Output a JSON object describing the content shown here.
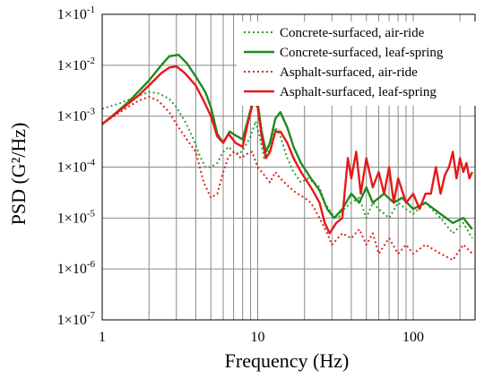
{
  "chart_data": {
    "type": "line",
    "title": "",
    "xlabel": "Frequency (Hz)",
    "ylabel": "PSD (G²/Hz)",
    "x_scale": "log",
    "y_scale": "log",
    "xlim": [
      1,
      250
    ],
    "ylim": [
      1e-07,
      0.1
    ],
    "grid": true,
    "legend_position": "top-right",
    "x_tick_labels": [
      {
        "value": 1,
        "label": "1"
      },
      {
        "value": 10,
        "label": "10"
      },
      {
        "value": 100,
        "label": "100"
      }
    ],
    "y_tick_labels": [
      {
        "value": 0.1,
        "mant": "1×10",
        "exp": "-1"
      },
      {
        "value": 0.01,
        "mant": "1×10",
        "exp": "-2"
      },
      {
        "value": 0.001,
        "mant": "1×10",
        "exp": "-3"
      },
      {
        "value": 0.0001,
        "mant": "1×10",
        "exp": "-4"
      },
      {
        "value": 1e-05,
        "mant": "1×10",
        "exp": "-5"
      },
      {
        "value": 1e-06,
        "mant": "1×10",
        "exp": "-6"
      },
      {
        "value": 1e-07,
        "mant": "1×10",
        "exp": "-7"
      }
    ],
    "series": [
      {
        "name": "Concrete-surfaced, air-ride",
        "color": "#2e9e2e",
        "dash": "dotted",
        "points": [
          [
            1,
            0.0014
          ],
          [
            1.3,
            0.0018
          ],
          [
            1.7,
            0.0025
          ],
          [
            2.0,
            0.003
          ],
          [
            2.3,
            0.0028
          ],
          [
            2.7,
            0.0022
          ],
          [
            3.0,
            0.0015
          ],
          [
            3.4,
            0.0008
          ],
          [
            3.8,
            0.0004
          ],
          [
            4.2,
            0.00018
          ],
          [
            4.6,
            0.0001
          ],
          [
            5.0,
            0.0001
          ],
          [
            5.5,
            0.00012
          ],
          [
            6.0,
            0.0002
          ],
          [
            6.5,
            0.00025
          ],
          [
            7.0,
            0.0002
          ],
          [
            7.6,
            0.00018
          ],
          [
            8.3,
            0.00025
          ],
          [
            9.0,
            0.0004
          ],
          [
            9.7,
            0.0008
          ],
          [
            10.3,
            0.0004
          ],
          [
            11,
            0.00015
          ],
          [
            12,
            0.00022
          ],
          [
            13,
            0.0006
          ],
          [
            14,
            0.0004
          ],
          [
            15.5,
            0.00015
          ],
          [
            17,
            8e-05
          ],
          [
            19,
            5e-05
          ],
          [
            21,
            6e-05
          ],
          [
            23,
            5e-05
          ],
          [
            25,
            4e-05
          ],
          [
            27,
            2e-05
          ],
          [
            30,
            1.2e-05
          ],
          [
            33,
            1e-05
          ],
          [
            36,
            1.5e-05
          ],
          [
            40,
            2e-05
          ],
          [
            45,
            2.5e-05
          ],
          [
            50,
            1e-05
          ],
          [
            55,
            2e-05
          ],
          [
            60,
            1.5e-05
          ],
          [
            70,
            1e-05
          ],
          [
            80,
            2e-05
          ],
          [
            90,
            1.5e-05
          ],
          [
            100,
            1.2e-05
          ],
          [
            120,
            2e-05
          ],
          [
            150,
            1e-05
          ],
          [
            180,
            5e-06
          ],
          [
            210,
            8e-06
          ],
          [
            240,
            4e-06
          ]
        ]
      },
      {
        "name": "Concrete-surfaced, leaf-spring",
        "color": "#1e8a1e",
        "dash": "solid",
        "points": [
          [
            1,
            0.0007
          ],
          [
            1.2,
            0.0011
          ],
          [
            1.5,
            0.002
          ],
          [
            2.0,
            0.005
          ],
          [
            2.4,
            0.01
          ],
          [
            2.7,
            0.015
          ],
          [
            3.1,
            0.016
          ],
          [
            3.5,
            0.011
          ],
          [
            4.0,
            0.006
          ],
          [
            4.6,
            0.003
          ],
          [
            5.0,
            0.0015
          ],
          [
            5.5,
            0.00045
          ],
          [
            6.0,
            0.0003
          ],
          [
            6.6,
            0.0005
          ],
          [
            7.2,
            0.00042
          ],
          [
            8.0,
            0.00035
          ],
          [
            8.7,
            0.0009
          ],
          [
            9.4,
            0.0022
          ],
          [
            10.0,
            0.0018
          ],
          [
            10.6,
            0.0005
          ],
          [
            11.3,
            0.0002
          ],
          [
            12,
            0.0003
          ],
          [
            13,
            0.0009
          ],
          [
            14,
            0.0012
          ],
          [
            15.5,
            0.0006
          ],
          [
            17,
            0.00025
          ],
          [
            19,
            0.00012
          ],
          [
            22,
            6e-05
          ],
          [
            25,
            3.5e-05
          ],
          [
            28,
            1.5e-05
          ],
          [
            31,
            1e-05
          ],
          [
            35,
            1.5e-05
          ],
          [
            40,
            3e-05
          ],
          [
            45,
            2e-05
          ],
          [
            50,
            4e-05
          ],
          [
            55,
            2e-05
          ],
          [
            65,
            3e-05
          ],
          [
            75,
            2e-05
          ],
          [
            85,
            2.5e-05
          ],
          [
            100,
            1.5e-05
          ],
          [
            120,
            2e-05
          ],
          [
            150,
            1.2e-05
          ],
          [
            180,
            8e-06
          ],
          [
            210,
            1e-05
          ],
          [
            240,
            6e-06
          ]
        ]
      },
      {
        "name": "Asphalt-surfaced, air-ride",
        "color": "#e02020",
        "dash": "dotted",
        "points": [
          [
            1,
            0.0007
          ],
          [
            1.3,
            0.0012
          ],
          [
            1.7,
            0.002
          ],
          [
            2.0,
            0.0024
          ],
          [
            2.3,
            0.002
          ],
          [
            2.7,
            0.0012
          ],
          [
            3.0,
            0.0007
          ],
          [
            3.5,
            0.00035
          ],
          [
            4.0,
            0.0002
          ],
          [
            4.5,
            5e-05
          ],
          [
            5.0,
            2.5e-05
          ],
          [
            5.5,
            3e-05
          ],
          [
            6.0,
            8e-05
          ],
          [
            6.5,
            0.00016
          ],
          [
            7.1,
            0.0002
          ],
          [
            7.8,
            0.00015
          ],
          [
            8.5,
            0.00018
          ],
          [
            9.2,
            0.0002
          ],
          [
            10,
            0.0001
          ],
          [
            11,
            7e-05
          ],
          [
            12,
            5e-05
          ],
          [
            13,
            8e-05
          ],
          [
            14,
            6e-05
          ],
          [
            16,
            4e-05
          ],
          [
            18,
            3e-05
          ],
          [
            20,
            2.5e-05
          ],
          [
            22,
            2e-05
          ],
          [
            25,
            1e-05
          ],
          [
            28,
            5e-06
          ],
          [
            30,
            3e-06
          ],
          [
            35,
            5e-06
          ],
          [
            40,
            4e-06
          ],
          [
            45,
            6e-06
          ],
          [
            50,
            3e-06
          ],
          [
            55,
            5e-06
          ],
          [
            60,
            2e-06
          ],
          [
            70,
            4e-06
          ],
          [
            80,
            2e-06
          ],
          [
            90,
            3e-06
          ],
          [
            100,
            2e-06
          ],
          [
            120,
            3e-06
          ],
          [
            150,
            2e-06
          ],
          [
            180,
            1.5e-06
          ],
          [
            210,
            3e-06
          ],
          [
            240,
            2e-06
          ]
        ]
      },
      {
        "name": "Asphalt-surfaced, leaf-spring",
        "color": "#e81818",
        "dash": "solid",
        "points": [
          [
            1,
            0.0007
          ],
          [
            1.3,
            0.0013
          ],
          [
            1.7,
            0.0025
          ],
          [
            2.0,
            0.004
          ],
          [
            2.4,
            0.007
          ],
          [
            2.7,
            0.009
          ],
          [
            3.0,
            0.0095
          ],
          [
            3.4,
            0.007
          ],
          [
            4.0,
            0.004
          ],
          [
            4.5,
            0.002
          ],
          [
            5.0,
            0.001
          ],
          [
            5.5,
            0.0004
          ],
          [
            6.0,
            0.0003
          ],
          [
            6.5,
            0.00045
          ],
          [
            7.2,
            0.0003
          ],
          [
            8.0,
            0.00025
          ],
          [
            8.7,
            0.0008
          ],
          [
            9.4,
            0.002
          ],
          [
            10.0,
            0.0015
          ],
          [
            10.6,
            0.0004
          ],
          [
            11.3,
            0.00015
          ],
          [
            12,
            0.0002
          ],
          [
            13,
            0.0005
          ],
          [
            14,
            0.0005
          ],
          [
            15.5,
            0.0003
          ],
          [
            17,
            0.00015
          ],
          [
            19,
            8e-05
          ],
          [
            22,
            4e-05
          ],
          [
            25,
            2e-05
          ],
          [
            27,
            8e-06
          ],
          [
            29,
            5e-06
          ],
          [
            32,
            8e-06
          ],
          [
            35,
            1e-05
          ],
          [
            38,
            0.00015
          ],
          [
            40,
            6e-05
          ],
          [
            43,
            0.0002
          ],
          [
            46,
            3e-05
          ],
          [
            50,
            0.00015
          ],
          [
            55,
            4e-05
          ],
          [
            60,
            8e-05
          ],
          [
            65,
            3e-05
          ],
          [
            70,
            0.0001
          ],
          [
            75,
            2e-05
          ],
          [
            80,
            6e-05
          ],
          [
            90,
            2e-05
          ],
          [
            100,
            3e-05
          ],
          [
            110,
            1.5e-05
          ],
          [
            120,
            3e-05
          ],
          [
            130,
            3e-05
          ],
          [
            140,
            0.0001
          ],
          [
            150,
            3e-05
          ],
          [
            160,
            7e-05
          ],
          [
            170,
            0.0001
          ],
          [
            180,
            0.0002
          ],
          [
            190,
            6e-05
          ],
          [
            200,
            0.00015
          ],
          [
            210,
            8e-05
          ],
          [
            220,
            0.00012
          ],
          [
            230,
            6e-05
          ],
          [
            240,
            8e-05
          ]
        ]
      }
    ]
  }
}
